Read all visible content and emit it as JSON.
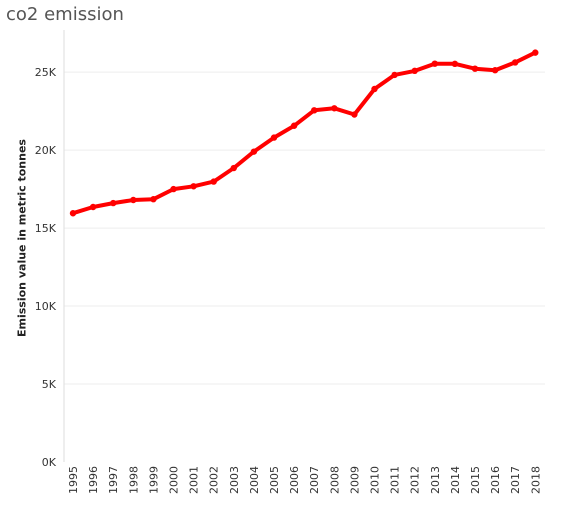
{
  "chart_data": {
    "type": "line",
    "title": "co2 emission",
    "xlabel": "",
    "ylabel": "Emission value in metric tonnes",
    "x": [
      "1995",
      "1996",
      "1997",
      "1998",
      "1999",
      "2000",
      "2001",
      "2002",
      "2003",
      "2004",
      "2005",
      "2006",
      "2007",
      "2008",
      "2009",
      "2010",
      "2011",
      "2012",
      "2013",
      "2014",
      "2015",
      "2016",
      "2017",
      "2018"
    ],
    "series": [
      {
        "values": [
          15950,
          16350,
          16600,
          16800,
          16850,
          17500,
          17680,
          17980,
          18850,
          19900,
          20800,
          21560,
          22550,
          22680,
          22280,
          23920,
          24820,
          25080,
          25540,
          25530,
          25220,
          25120,
          25620,
          26250
        ]
      }
    ],
    "yticks": [
      {
        "value": 0,
        "label": "0K"
      },
      {
        "value": 5000,
        "label": "5K"
      },
      {
        "value": 10000,
        "label": "10K"
      },
      {
        "value": 15000,
        "label": "15K"
      },
      {
        "value": 20000,
        "label": "20K"
      },
      {
        "value": 25000,
        "label": "25K"
      }
    ],
    "ylim": [
      0,
      27700
    ],
    "grid": true,
    "line_color": "#ff0000",
    "grid_color": "#eeeeee"
  }
}
